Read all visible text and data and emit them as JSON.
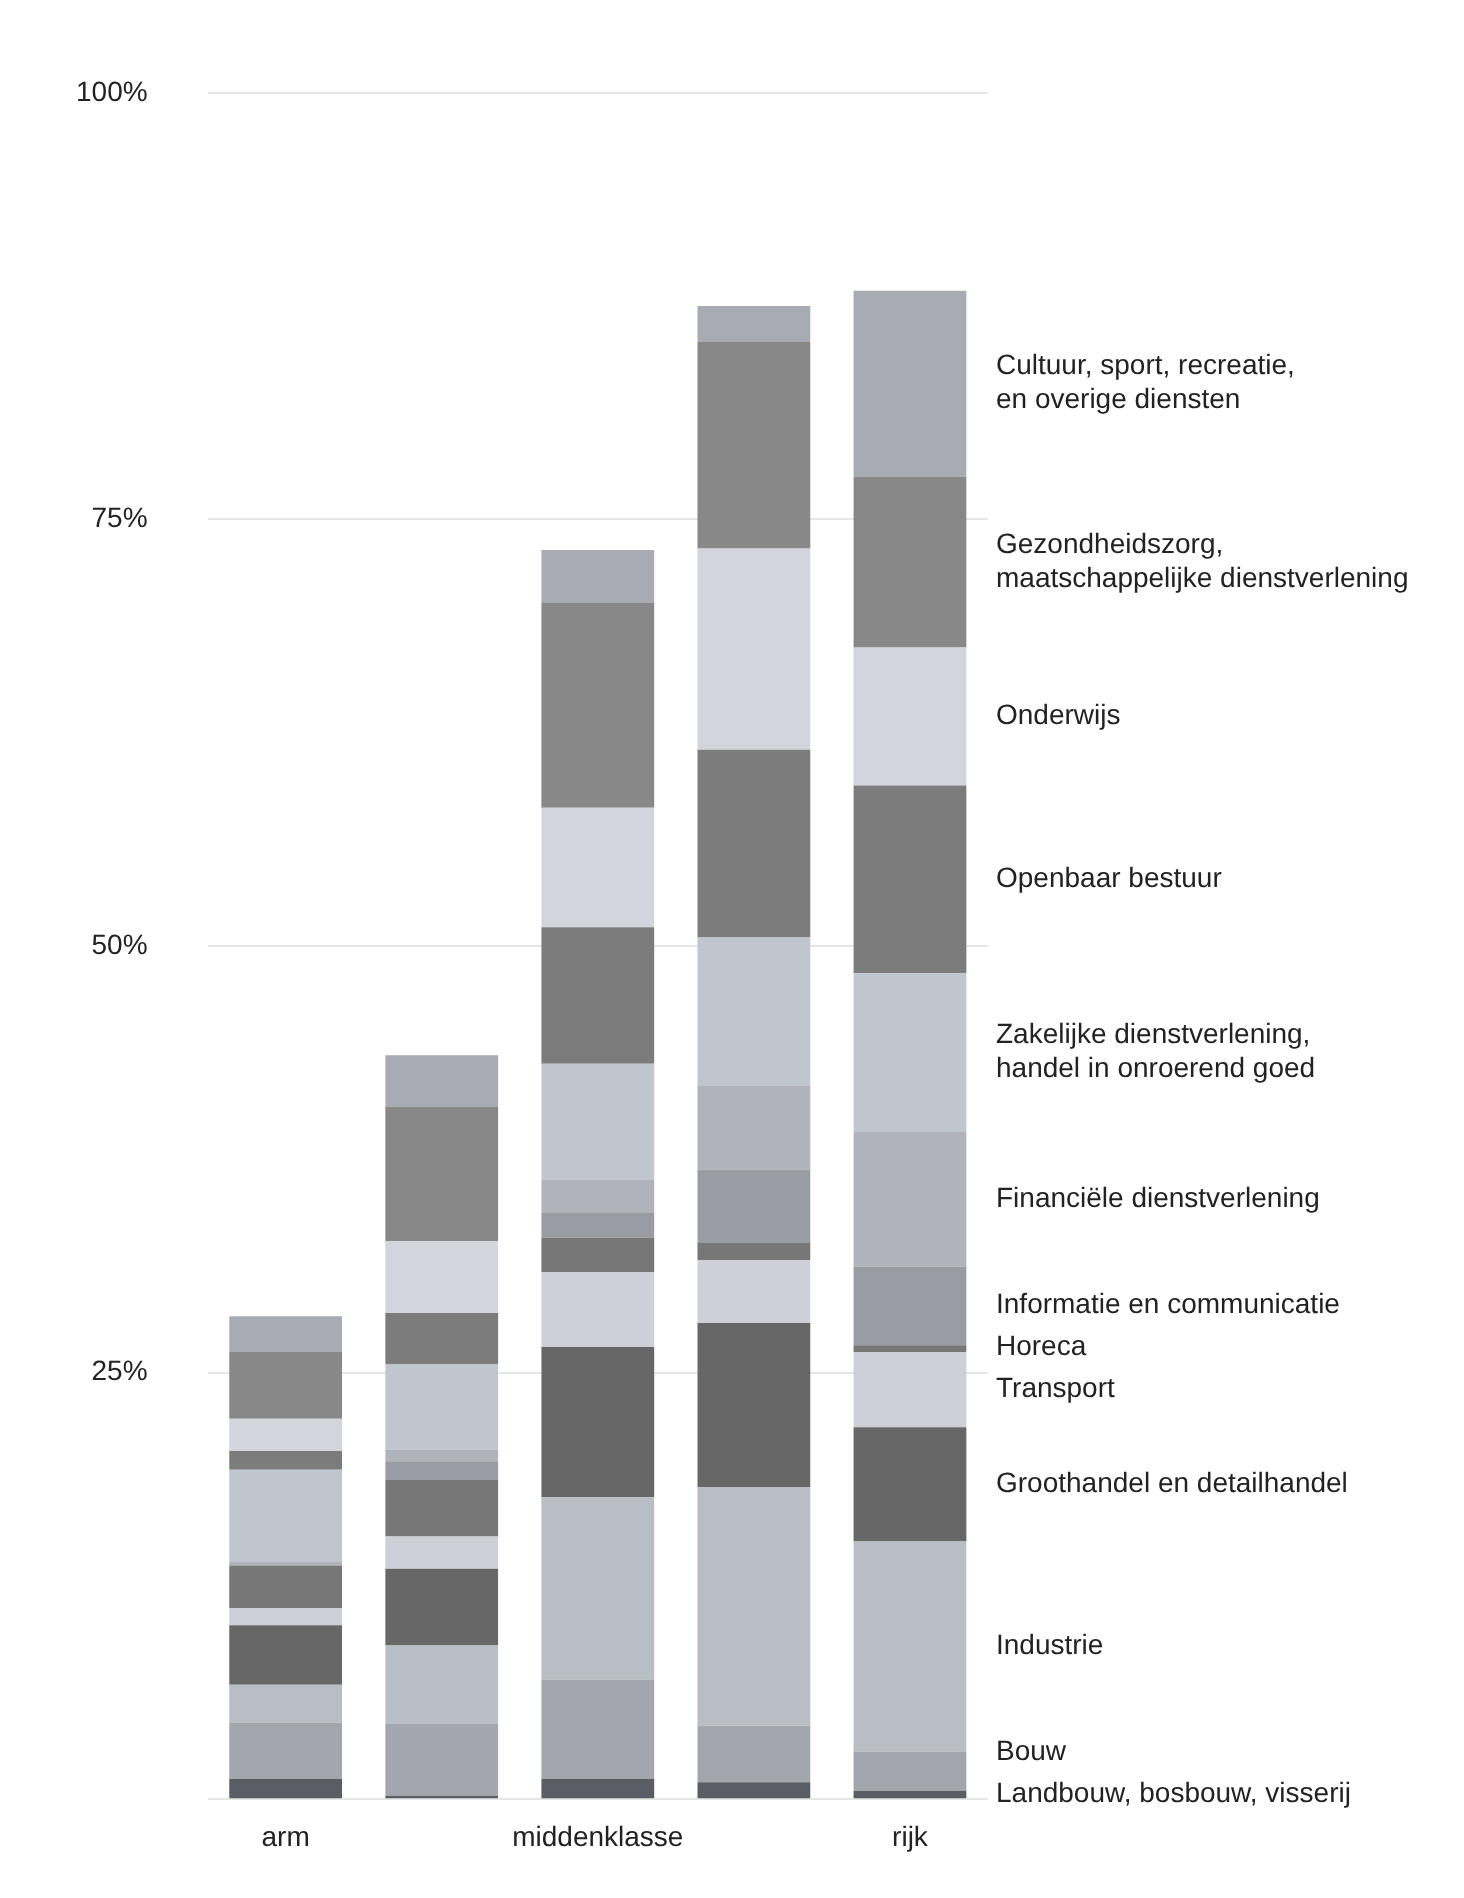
{
  "chart_data": {
    "type": "bar",
    "stacked": true,
    "categories": [
      "arm",
      null,
      "middenklasse",
      null,
      "rijk"
    ],
    "series": [
      {
        "name": "Landbouw, bosbouw, visserij",
        "color": "#5a5d63",
        "values": [
          1.2,
          0.2,
          1.2,
          1.0,
          0.5
        ]
      },
      {
        "name": "Bouw",
        "color": "#a3a6ad",
        "values": [
          3.3,
          4.2,
          5.8,
          3.3,
          2.3
        ]
      },
      {
        "name": "Industrie",
        "color": "#b9bec5",
        "values": [
          2.2,
          4.6,
          10.7,
          14.0,
          12.3
        ]
      },
      {
        "name": "Groothandel en detailhandel",
        "color": "#676767",
        "values": [
          3.5,
          4.5,
          8.8,
          9.6,
          6.7
        ]
      },
      {
        "name": "Transport",
        "color": "#cfcfd7",
        "values": [
          1.0,
          1.9,
          4.4,
          3.7,
          4.4
        ]
      },
      {
        "name": "Horeca",
        "color": "#777777",
        "values": [
          2.5,
          3.3,
          2.0,
          1.0,
          0.4
        ]
      },
      {
        "name": "Informatie en communicatie",
        "color": "#9a9ca3",
        "values": [
          null,
          1.1,
          1.5,
          4.3,
          4.6
        ]
      },
      {
        "name": "Financiële dienstverlening",
        "color": "#b0b3ba",
        "values": [
          0.2,
          0.7,
          1.9,
          4.9,
          7.9
        ]
      },
      {
        "name": "Zakelijke dienstverlening, handel in onroerend goed",
        "color": "#c0c6cd",
        "values": [
          5.4,
          5.0,
          6.8,
          8.7,
          9.3
        ]
      },
      {
        "name": "Openbaar bestuur",
        "color": "#7c7c7c",
        "values": [
          1.1,
          3.0,
          8.0,
          11.0,
          11.0
        ]
      },
      {
        "name": "Onderwijs",
        "color": "#d4d4dc",
        "values": [
          1.9,
          4.2,
          7.0,
          11.8,
          8.1
        ]
      },
      {
        "name": "Gezondheidszorg, maatschappelijke dienstverlening",
        "color": "#888888",
        "values": [
          3.9,
          7.9,
          12.0,
          12.1,
          10.0
        ]
      },
      {
        "name": "Cultuur, sport, recreatie, en overige diensten",
        "color": "#a8abb2",
        "values": [
          2.1,
          3.0,
          3.1,
          2.1,
          10.9
        ]
      }
    ],
    "ylim": [
      0,
      100
    ],
    "yticks": [
      {
        "value": 0,
        "label": null
      },
      {
        "value": 25,
        "label": "25%"
      },
      {
        "value": 50,
        "label": "50%"
      },
      {
        "value": 75,
        "label": "75%"
      },
      {
        "value": 100,
        "label": "100%"
      }
    ],
    "grid": "y",
    "legend": "right"
  }
}
